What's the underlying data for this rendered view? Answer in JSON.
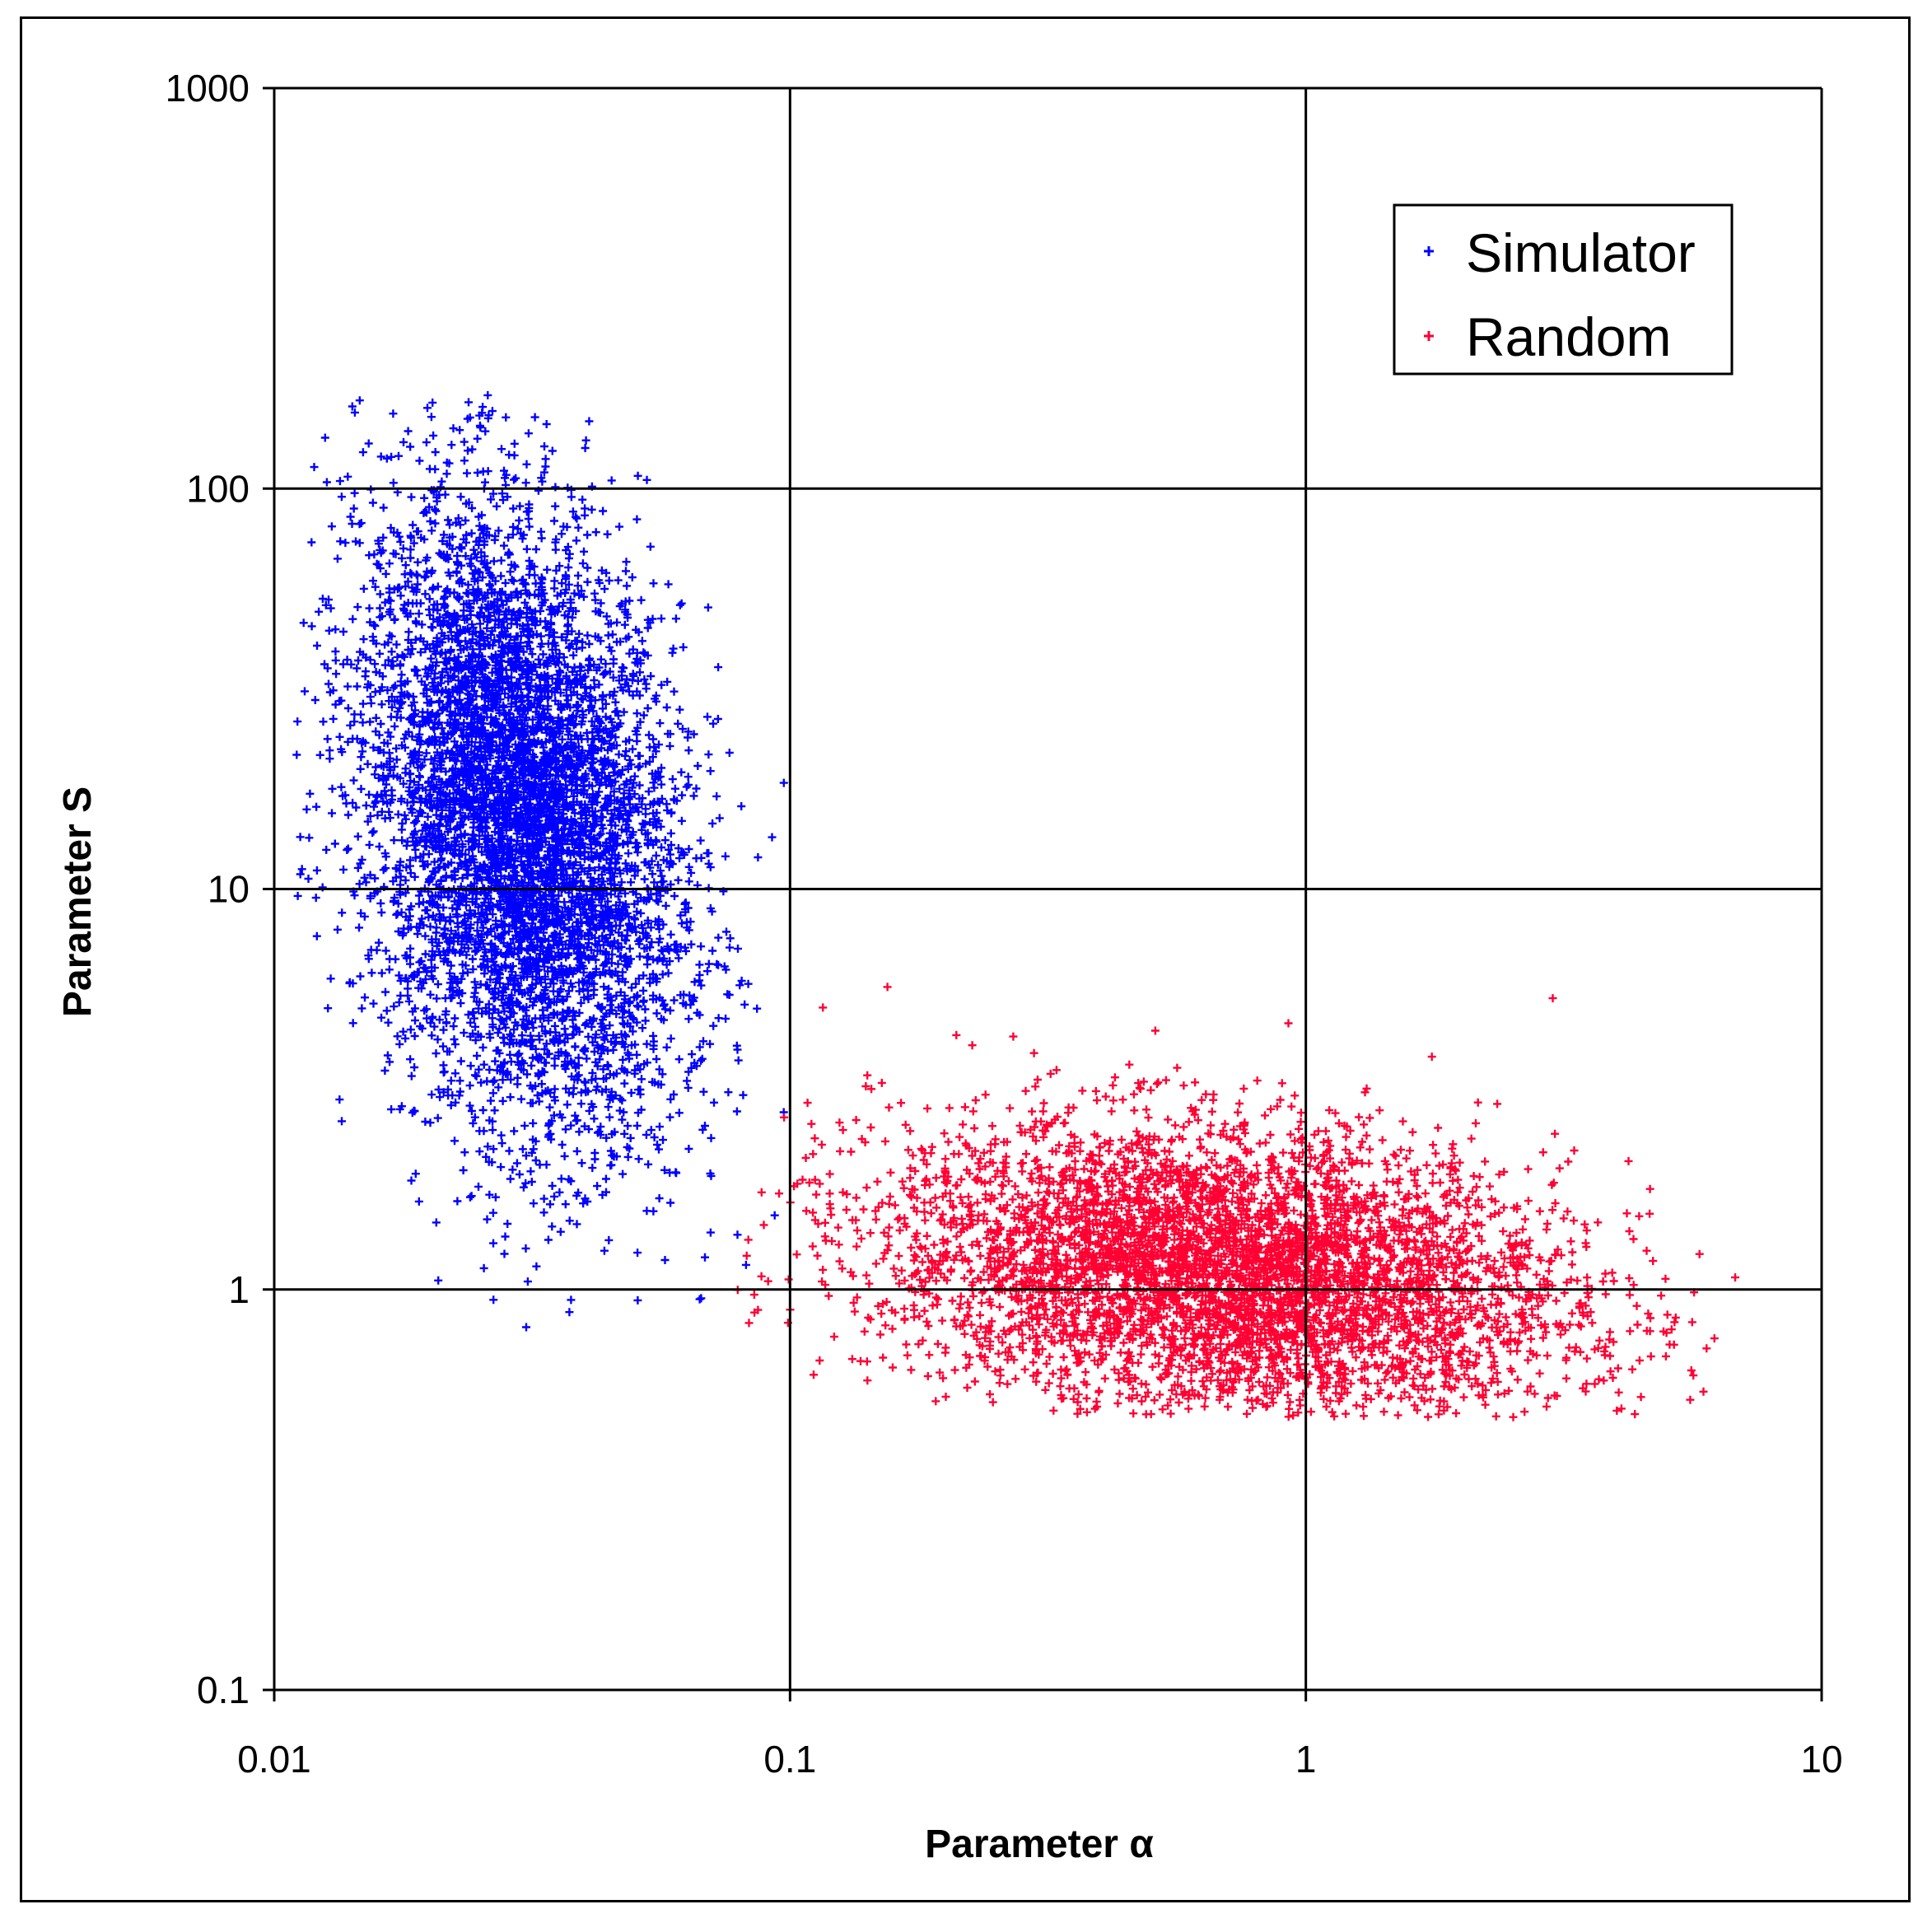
{
  "chart_data": {
    "type": "scatter",
    "xlabel": "Parameter α",
    "ylabel": "Parameter S",
    "x_scale": "log",
    "y_scale": "log",
    "xlim": [
      0.01,
      10
    ],
    "ylim": [
      0.1,
      1000
    ],
    "x_ticks": [
      "0.01",
      "0.1",
      "1",
      "10"
    ],
    "y_ticks": [
      "0.1",
      "1",
      "10",
      "100",
      "1000"
    ],
    "grid": true,
    "legend_position": "top-right",
    "series": [
      {
        "name": "Simulator",
        "color": "#0000ff",
        "marker": "plus",
        "cluster": {
          "x_center": 0.03,
          "y_center": 15,
          "x_range": [
            0.011,
            0.1
          ],
          "y_range": [
            0.7,
            180
          ],
          "point_count": 6000
        }
      },
      {
        "name": "Random",
        "color": "#ff0033",
        "marker": "plus",
        "cluster": {
          "x_center": 0.7,
          "y_center": 1.1,
          "x_range": [
            0.075,
            8.5
          ],
          "y_range": [
            0.48,
            6.5
          ],
          "point_count": 6000
        }
      }
    ]
  }
}
